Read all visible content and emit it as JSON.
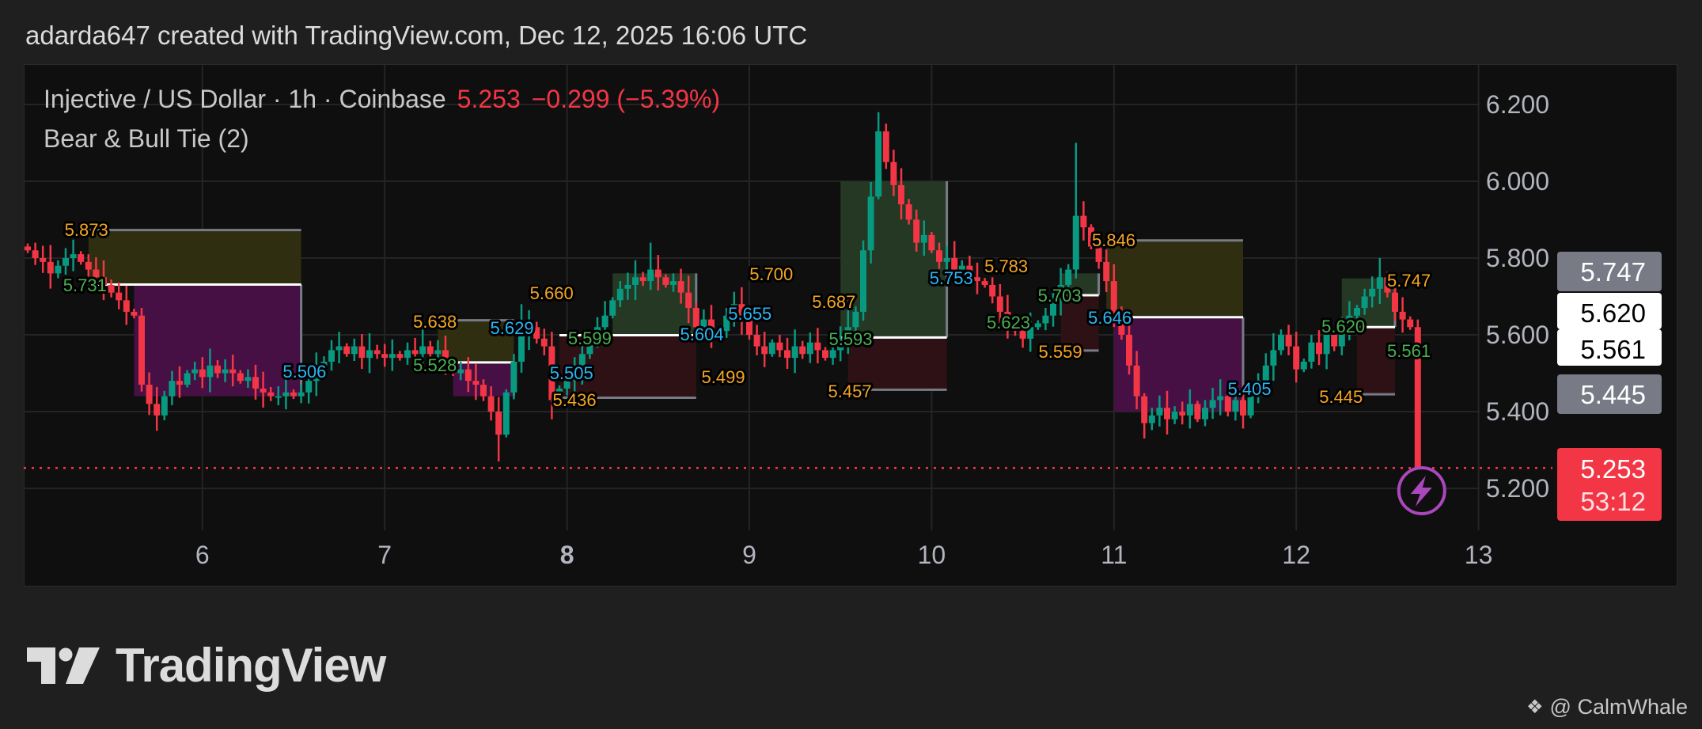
{
  "header": {
    "credit": "adarda647 created with TradingView.com, Dec 12, 2025 16:06 UTC"
  },
  "legend": {
    "symbol": "Injective / US Dollar · 1h · Coinbase",
    "last": "5.253",
    "change": "−0.299 (−5.39%)",
    "indicator": "Bear & Bull Tie (2)"
  },
  "colors": {
    "up": "#089981",
    "down": "#f23645",
    "label_orange": "#f5a623",
    "label_green": "#4caf50",
    "label_cyan": "#29b6f6",
    "alert": "#ab47bc"
  },
  "chart_data": {
    "type": "candlestick",
    "interval": "1h",
    "x_ticks": [
      "6",
      "7",
      "8",
      "9",
      "10",
      "11",
      "12",
      "13"
    ],
    "y_ticks": [
      "6.200",
      "6.000",
      "5.800",
      "5.600",
      "5.400",
      "5.200"
    ],
    "ylim": [
      5.12,
      6.32
    ],
    "grid": true,
    "closes": [
      5.82,
      5.8,
      5.79,
      5.76,
      5.78,
      5.8,
      5.81,
      5.79,
      5.77,
      5.75,
      5.73,
      5.71,
      5.69,
      5.66,
      5.65,
      5.47,
      5.42,
      5.39,
      5.44,
      5.48,
      5.47,
      5.5,
      5.51,
      5.49,
      5.52,
      5.5,
      5.51,
      5.5,
      5.48,
      5.49,
      5.46,
      5.45,
      5.44,
      5.44,
      5.45,
      5.44,
      5.45,
      5.48,
      5.51,
      5.53,
      5.56,
      5.57,
      5.55,
      5.57,
      5.54,
      5.56,
      5.55,
      5.54,
      5.55,
      5.54,
      5.56,
      5.55,
      5.57,
      5.55,
      5.56,
      5.53,
      5.5,
      5.51,
      5.48,
      5.47,
      5.44,
      5.4,
      5.34,
      5.45,
      5.53,
      5.6,
      5.62,
      5.59,
      5.57,
      5.43,
      5.46,
      5.48,
      5.51,
      5.55,
      5.59,
      5.62,
      5.65,
      5.69,
      5.72,
      5.73,
      5.75,
      5.74,
      5.77,
      5.75,
      5.73,
      5.74,
      5.71,
      5.67,
      5.62,
      5.64,
      5.6,
      5.61,
      5.65,
      5.68,
      5.64,
      5.6,
      5.57,
      5.55,
      5.58,
      5.56,
      5.54,
      5.57,
      5.55,
      5.58,
      5.56,
      5.54,
      5.56,
      5.59,
      5.62,
      5.66,
      5.82,
      5.96,
      6.13,
      6.05,
      5.99,
      5.94,
      5.9,
      5.84,
      5.86,
      5.82,
      5.79,
      5.8,
      5.77,
      5.78,
      5.75,
      5.74,
      5.73,
      5.7,
      5.66,
      5.63,
      5.61,
      5.59,
      5.62,
      5.63,
      5.65,
      5.69,
      5.73,
      5.77,
      5.91,
      5.88,
      5.83,
      5.79,
      5.74,
      5.66,
      5.6,
      5.52,
      5.44,
      5.37,
      5.39,
      5.41,
      5.38,
      5.4,
      5.39,
      5.42,
      5.38,
      5.41,
      5.43,
      5.44,
      5.4,
      5.43,
      5.39,
      5.44,
      5.48,
      5.52,
      5.56,
      5.6,
      5.57,
      5.51,
      5.53,
      5.58,
      5.55,
      5.6,
      5.57,
      5.62,
      5.65,
      5.67,
      5.7,
      5.72,
      5.75,
      5.71,
      5.66,
      5.64,
      5.62,
      5.253
    ],
    "last_price": 5.253,
    "zones": [
      {
        "kind": "bear",
        "top": 5.873,
        "mid": 5.731,
        "bottom": 5.44
      },
      {
        "kind": "bear",
        "top": 5.638,
        "mid": 5.528,
        "bottom": 5.44
      },
      {
        "kind": "bull",
        "top": 5.76,
        "mid": 5.599,
        "bottom": 5.436
      },
      {
        "kind": "bull",
        "top": 6.0,
        "mid": 5.593,
        "bottom": 5.457
      },
      {
        "kind": "bull",
        "top": 5.76,
        "mid": 5.703,
        "bottom": 5.559
      },
      {
        "kind": "bear",
        "top": 5.846,
        "mid": 5.646,
        "bottom": 5.4
      },
      {
        "kind": "bull",
        "top": 5.747,
        "mid": 5.62,
        "bottom": 5.445
      }
    ],
    "labels": [
      {
        "text": "5.873",
        "color": "orange"
      },
      {
        "text": "5.731",
        "color": "green"
      },
      {
        "text": "5.506",
        "color": "cyan"
      },
      {
        "text": "5.638",
        "color": "orange"
      },
      {
        "text": "5.528",
        "color": "green"
      },
      {
        "text": "5.629",
        "color": "cyan"
      },
      {
        "text": "5.660",
        "color": "orange"
      },
      {
        "text": "5.505",
        "color": "cyan"
      },
      {
        "text": "5.436",
        "color": "orange"
      },
      {
        "text": "5.599",
        "color": "green"
      },
      {
        "text": "5.604",
        "color": "cyan"
      },
      {
        "text": "5.499",
        "color": "orange"
      },
      {
        "text": "5.700",
        "color": "orange"
      },
      {
        "text": "5.687",
        "color": "orange"
      },
      {
        "text": "5.655",
        "color": "cyan"
      },
      {
        "text": "5.593",
        "color": "green"
      },
      {
        "text": "5.457",
        "color": "orange"
      },
      {
        "text": "5.783",
        "color": "orange"
      },
      {
        "text": "5.753",
        "color": "cyan"
      },
      {
        "text": "5.703",
        "color": "green"
      },
      {
        "text": "5.623",
        "color": "green"
      },
      {
        "text": "5.846",
        "color": "orange"
      },
      {
        "text": "5.646",
        "color": "cyan"
      },
      {
        "text": "5.559",
        "color": "orange"
      },
      {
        "text": "5.405",
        "color": "cyan"
      },
      {
        "text": "5.620",
        "color": "green"
      },
      {
        "text": "5.747",
        "color": "orange"
      },
      {
        "text": "5.561",
        "color": "green"
      },
      {
        "text": "5.445",
        "color": "orange"
      }
    ],
    "badges": [
      {
        "text": "5.747",
        "price": 5.747,
        "style": "gray"
      },
      {
        "text": "5.620",
        "price": 5.62,
        "style": "white"
      },
      {
        "text": "5.561",
        "price": 5.561,
        "style": "white"
      },
      {
        "text": "5.445",
        "price": 5.445,
        "style": "gray"
      }
    ],
    "last_badge": {
      "price": "5.253",
      "countdown": "53:12"
    }
  },
  "footer": {
    "logo": "TradingView",
    "watermark": "@ CalmWhale"
  }
}
